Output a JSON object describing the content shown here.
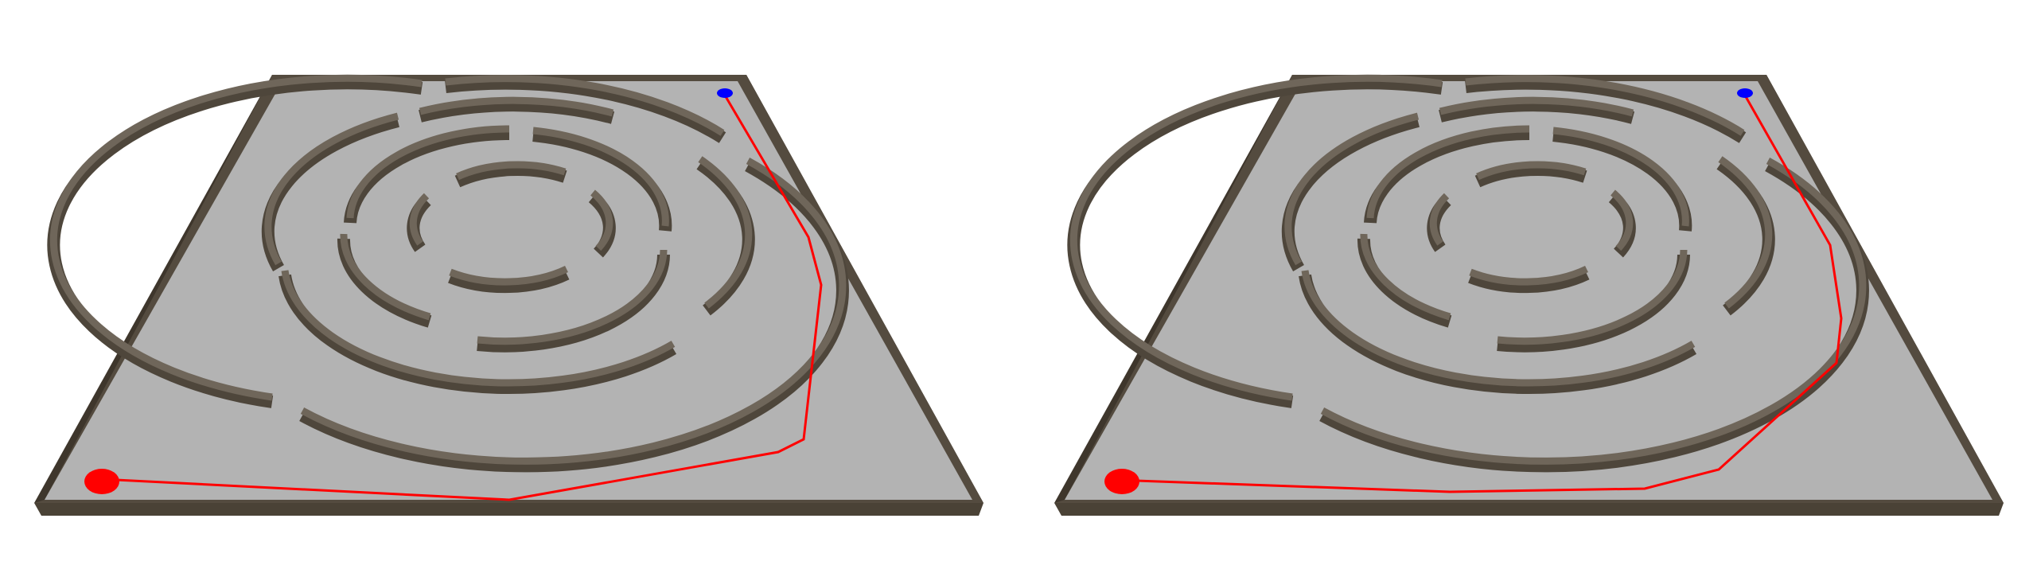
{
  "scene": {
    "background": "#ffffff",
    "colors": {
      "floor": "#b3b3b3",
      "frame_top": "#544b3f",
      "frame_side": "#3e362c",
      "wall_top": "#6f665a",
      "wall_side": "#4e463b",
      "start_marker": "#ff0000",
      "goal_marker": "#0000ff",
      "path_line": "#ff0000"
    }
  },
  "panels": [
    {
      "name": "left-maze-view",
      "start_marker": "red-ellipse",
      "goal_marker": "blue-ellipse",
      "path": "red-polyline-via-outer-right"
    },
    {
      "name": "right-maze-view",
      "start_marker": "red-ellipse",
      "goal_marker": "blue-ellipse",
      "path": "red-polyline-via-outer-right"
    }
  ]
}
